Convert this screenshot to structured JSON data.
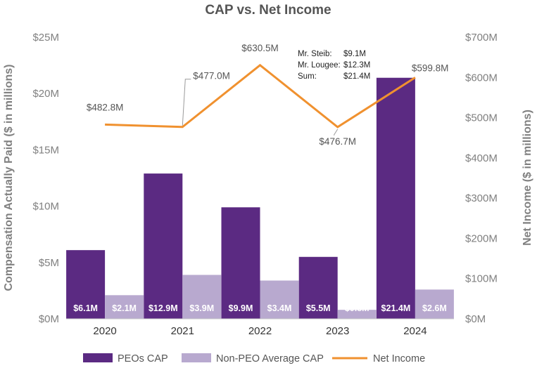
{
  "chart_data": {
    "type": "bar",
    "title": "CAP vs. Net Income",
    "categories": [
      "2020",
      "2021",
      "2022",
      "2023",
      "2024"
    ],
    "ylabel_left": "Compensation Actually Paid ($ in millions)",
    "ylabel_right": "Net Income ($ in millions)",
    "ylim_left": [
      0,
      25
    ],
    "ylim_right": [
      0,
      700
    ],
    "yticks_left": [
      "$0M",
      "$5M",
      "$10M",
      "$15M",
      "$20M",
      "$25M"
    ],
    "yticks_right": [
      "$0M",
      "$100M",
      "$200M",
      "$300M",
      "$400M",
      "$500M",
      "$600M",
      "$700M"
    ],
    "grid": false,
    "legend_position": "bottom",
    "series": [
      {
        "name": "PEOs CAP",
        "kind": "bar",
        "axis": "left",
        "color": "#5b2a82",
        "values": [
          6.1,
          12.9,
          9.9,
          5.5,
          21.4
        ],
        "labels": [
          "$6.1M",
          "$12.9M",
          "$9.9M",
          "$5.5M",
          "$21.4M"
        ]
      },
      {
        "name": "Non-PEO Average CAP",
        "kind": "bar",
        "axis": "left",
        "color": "#b8a9cf",
        "values": [
          2.1,
          3.9,
          3.4,
          0.8,
          2.6
        ],
        "labels": [
          "$2.1M",
          "$3.9M",
          "$3.4M",
          "$0.8M",
          "$2.6M"
        ]
      },
      {
        "name": "Net Income",
        "kind": "line",
        "axis": "right",
        "color": "#f0912f",
        "values": [
          482.8,
          477.0,
          630.5,
          476.7,
          599.8
        ],
        "labels": [
          "$482.8M",
          "$477.0M",
          "$630.5M",
          "$476.7M",
          "$599.8M"
        ]
      }
    ],
    "annotation": {
      "rows": [
        {
          "label": "Mr. Steib:",
          "value": "$9.1M"
        },
        {
          "label": "Mr. Lougee:",
          "value": "$12.3M"
        },
        {
          "label": "Sum:",
          "value": "$21.4M"
        }
      ]
    }
  }
}
